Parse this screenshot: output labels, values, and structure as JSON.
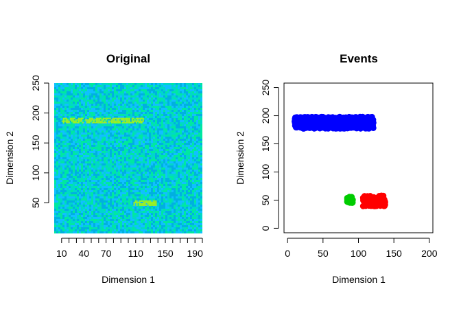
{
  "chart_data": [
    {
      "type": "heatmap",
      "title": "Original",
      "xlabel": "Dimension 1",
      "ylabel": "Dimension 2",
      "xlim": [
        0,
        200
      ],
      "ylim": [
        0,
        250
      ],
      "x_tick_labels": [
        "10",
        "40",
        "70",
        "110",
        "150",
        "190"
      ],
      "x_ticks": [
        10,
        40,
        70,
        110,
        150,
        190
      ],
      "x_minor_ticks": [
        10,
        20,
        30,
        40,
        50,
        60,
        70,
        80,
        90,
        100,
        110,
        120,
        130,
        140,
        150,
        160,
        170,
        180,
        190,
        200
      ],
      "y_ticks": [
        50,
        100,
        150,
        200,
        250
      ],
      "y_tick_labels": [
        "50",
        "100",
        "150",
        "200",
        "250"
      ],
      "background_colors": [
        "#00b0e0",
        "#00d8c8",
        "#10c0ff",
        "#00e8a0"
      ],
      "highlight_color": "#a0f020",
      "bands": [
        {
          "x": [
            10,
            120
          ],
          "y": [
            183,
            192
          ]
        },
        {
          "x": [
            107,
            137
          ],
          "y": [
            45,
            54
          ]
        }
      ]
    },
    {
      "type": "scatter",
      "title": "Events",
      "xlabel": "Dimension 1",
      "ylabel": "Dimension 2",
      "xlim": [
        -5,
        205
      ],
      "ylim": [
        -8,
        258
      ],
      "x_ticks": [
        0,
        50,
        100,
        150,
        200
      ],
      "y_ticks": [
        0,
        50,
        100,
        150,
        200,
        250
      ],
      "series": [
        {
          "color": "#0000ff",
          "x": [
            10,
            122
          ],
          "y": [
            177,
            198
          ]
        },
        {
          "color": "#00cc00",
          "x": [
            84,
            92
          ],
          "y": [
            45,
            56
          ]
        },
        {
          "color": "#ff0000",
          "x": [
            106,
            138
          ],
          "y": [
            39,
            58
          ]
        }
      ]
    }
  ]
}
